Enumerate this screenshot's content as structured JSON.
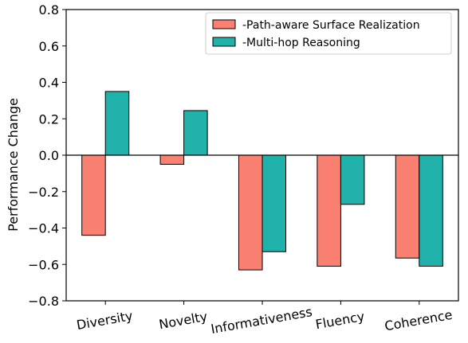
{
  "chart_data": {
    "type": "bar",
    "title": "",
    "xlabel": "",
    "ylabel": "Performance Change",
    "ylim": [
      -0.8,
      0.8
    ],
    "yticks": [
      "0.8",
      "0.6",
      "0.4",
      "0.2",
      "0.0",
      "−0.2",
      "−0.4",
      "−0.6",
      "−0.8"
    ],
    "ytick_values": [
      0.8,
      0.6,
      0.4,
      0.2,
      0.0,
      -0.2,
      -0.4,
      -0.6,
      -0.8
    ],
    "categories": [
      "Diversity",
      "Novelty",
      "Informativeness",
      "Fluency",
      "Coherence"
    ],
    "series": [
      {
        "name": "-Path-aware Surface Realization",
        "color": "#fa8072",
        "values": [
          -0.44,
          -0.05,
          -0.63,
          -0.61,
          -0.565
        ]
      },
      {
        "name": "-Multi-hop Reasoning",
        "color": "#20b2aa",
        "values": [
          0.35,
          0.245,
          -0.53,
          -0.27,
          -0.61
        ]
      }
    ],
    "legend_position": "top-right",
    "grid": false,
    "zero_line": true,
    "xtick_rotation_deg": -10
  }
}
